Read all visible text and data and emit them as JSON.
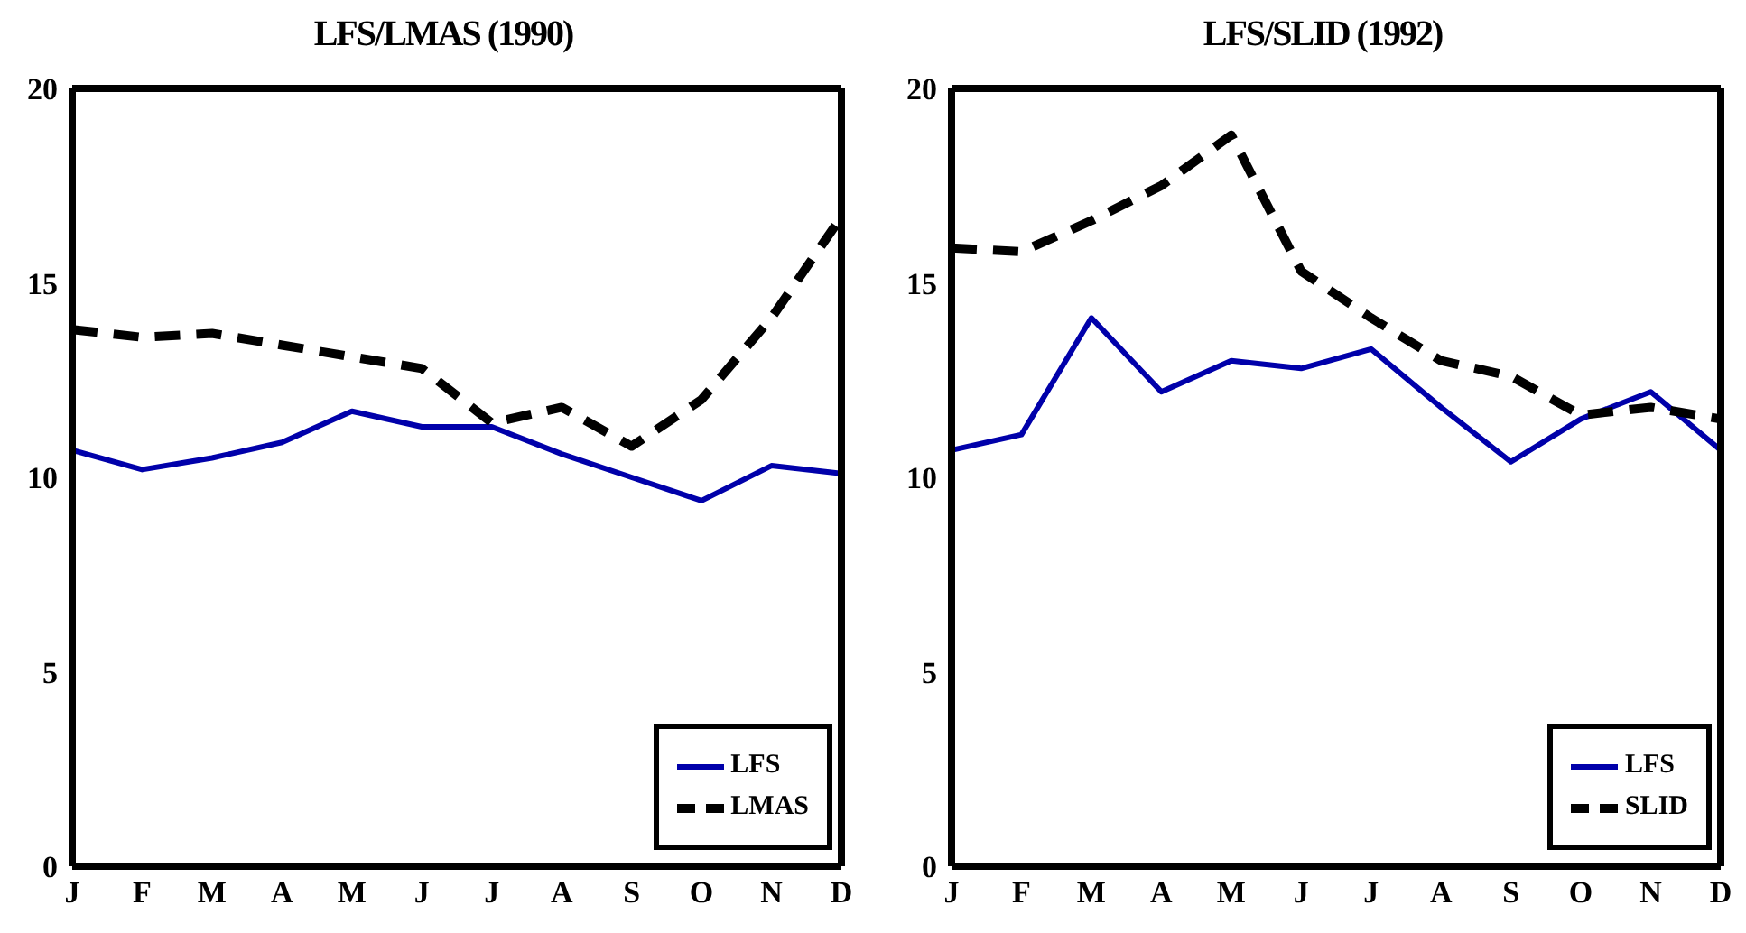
{
  "chart_data": [
    {
      "type": "line",
      "title": "LFS/LMAS (1990)",
      "categories": [
        "J",
        "F",
        "M",
        "A",
        "M",
        "J",
        "J",
        "A",
        "S",
        "O",
        "N",
        "D"
      ],
      "ylim": [
        0,
        20
      ],
      "yticks": [
        0,
        5,
        10,
        15,
        20
      ],
      "grid": false,
      "legend": "bottom right",
      "series": [
        {
          "name": "LFS",
          "color": "#0000aa",
          "line_style": "solid",
          "values": [
            10.7,
            10.2,
            10.5,
            10.9,
            11.7,
            11.3,
            11.3,
            10.6,
            10.0,
            9.4,
            10.3,
            10.1
          ]
        },
        {
          "name": "LMAS",
          "color": "#000000",
          "line_style": "dashed",
          "values": [
            13.8,
            13.6,
            13.7,
            13.4,
            13.1,
            12.8,
            11.4,
            11.8,
            10.8,
            12.0,
            14.1,
            16.7
          ]
        }
      ]
    },
    {
      "type": "line",
      "title": "LFS/SLID (1992)",
      "categories": [
        "J",
        "F",
        "M",
        "A",
        "M",
        "J",
        "J",
        "A",
        "S",
        "O",
        "N",
        "D"
      ],
      "ylim": [
        0,
        20
      ],
      "yticks": [
        0,
        5,
        10,
        15,
        20
      ],
      "grid": false,
      "legend": "bottom right",
      "series": [
        {
          "name": "LFS",
          "color": "#0000aa",
          "line_style": "solid",
          "values": [
            10.7,
            11.1,
            14.1,
            12.2,
            13.0,
            12.8,
            13.3,
            11.8,
            10.4,
            11.5,
            12.2,
            10.7
          ]
        },
        {
          "name": "SLID",
          "color": "#000000",
          "line_style": "dashed",
          "values": [
            15.9,
            15.8,
            16.6,
            17.5,
            18.8,
            15.3,
            14.1,
            13.0,
            12.6,
            11.6,
            11.8,
            11.5
          ]
        }
      ]
    }
  ]
}
